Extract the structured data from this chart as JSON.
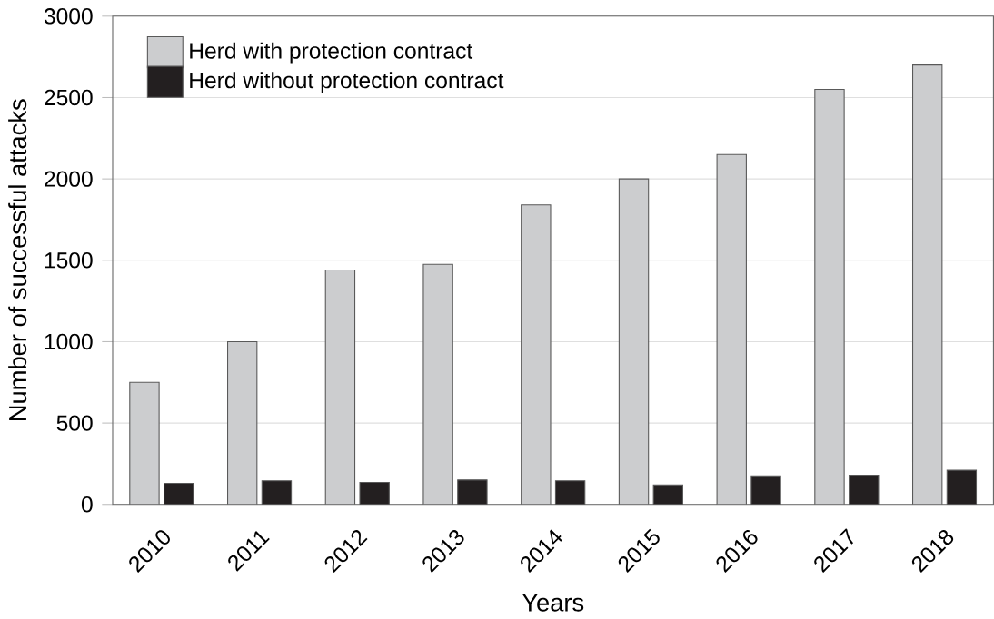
{
  "chart_data": {
    "type": "bar",
    "xlabel": "Years",
    "ylabel": "Number of successful attacks",
    "categories": [
      "2010",
      "2011",
      "2012",
      "2013",
      "2014",
      "2015",
      "2016",
      "2017",
      "2018"
    ],
    "series": [
      {
        "name": "Herd with protection contract",
        "color": "#cccdcf",
        "values": [
          750,
          1000,
          1440,
          1475,
          1840,
          2000,
          2150,
          2550,
          2700
        ]
      },
      {
        "name": "Herd without protection contract",
        "color": "#231f20",
        "values": [
          130,
          145,
          135,
          150,
          145,
          120,
          175,
          180,
          210
        ]
      }
    ],
    "ylim": [
      0,
      3000
    ],
    "yticks": [
      0,
      500,
      1000,
      1500,
      2000,
      2500,
      3000
    ],
    "grid": "y",
    "legend": "top left"
  }
}
